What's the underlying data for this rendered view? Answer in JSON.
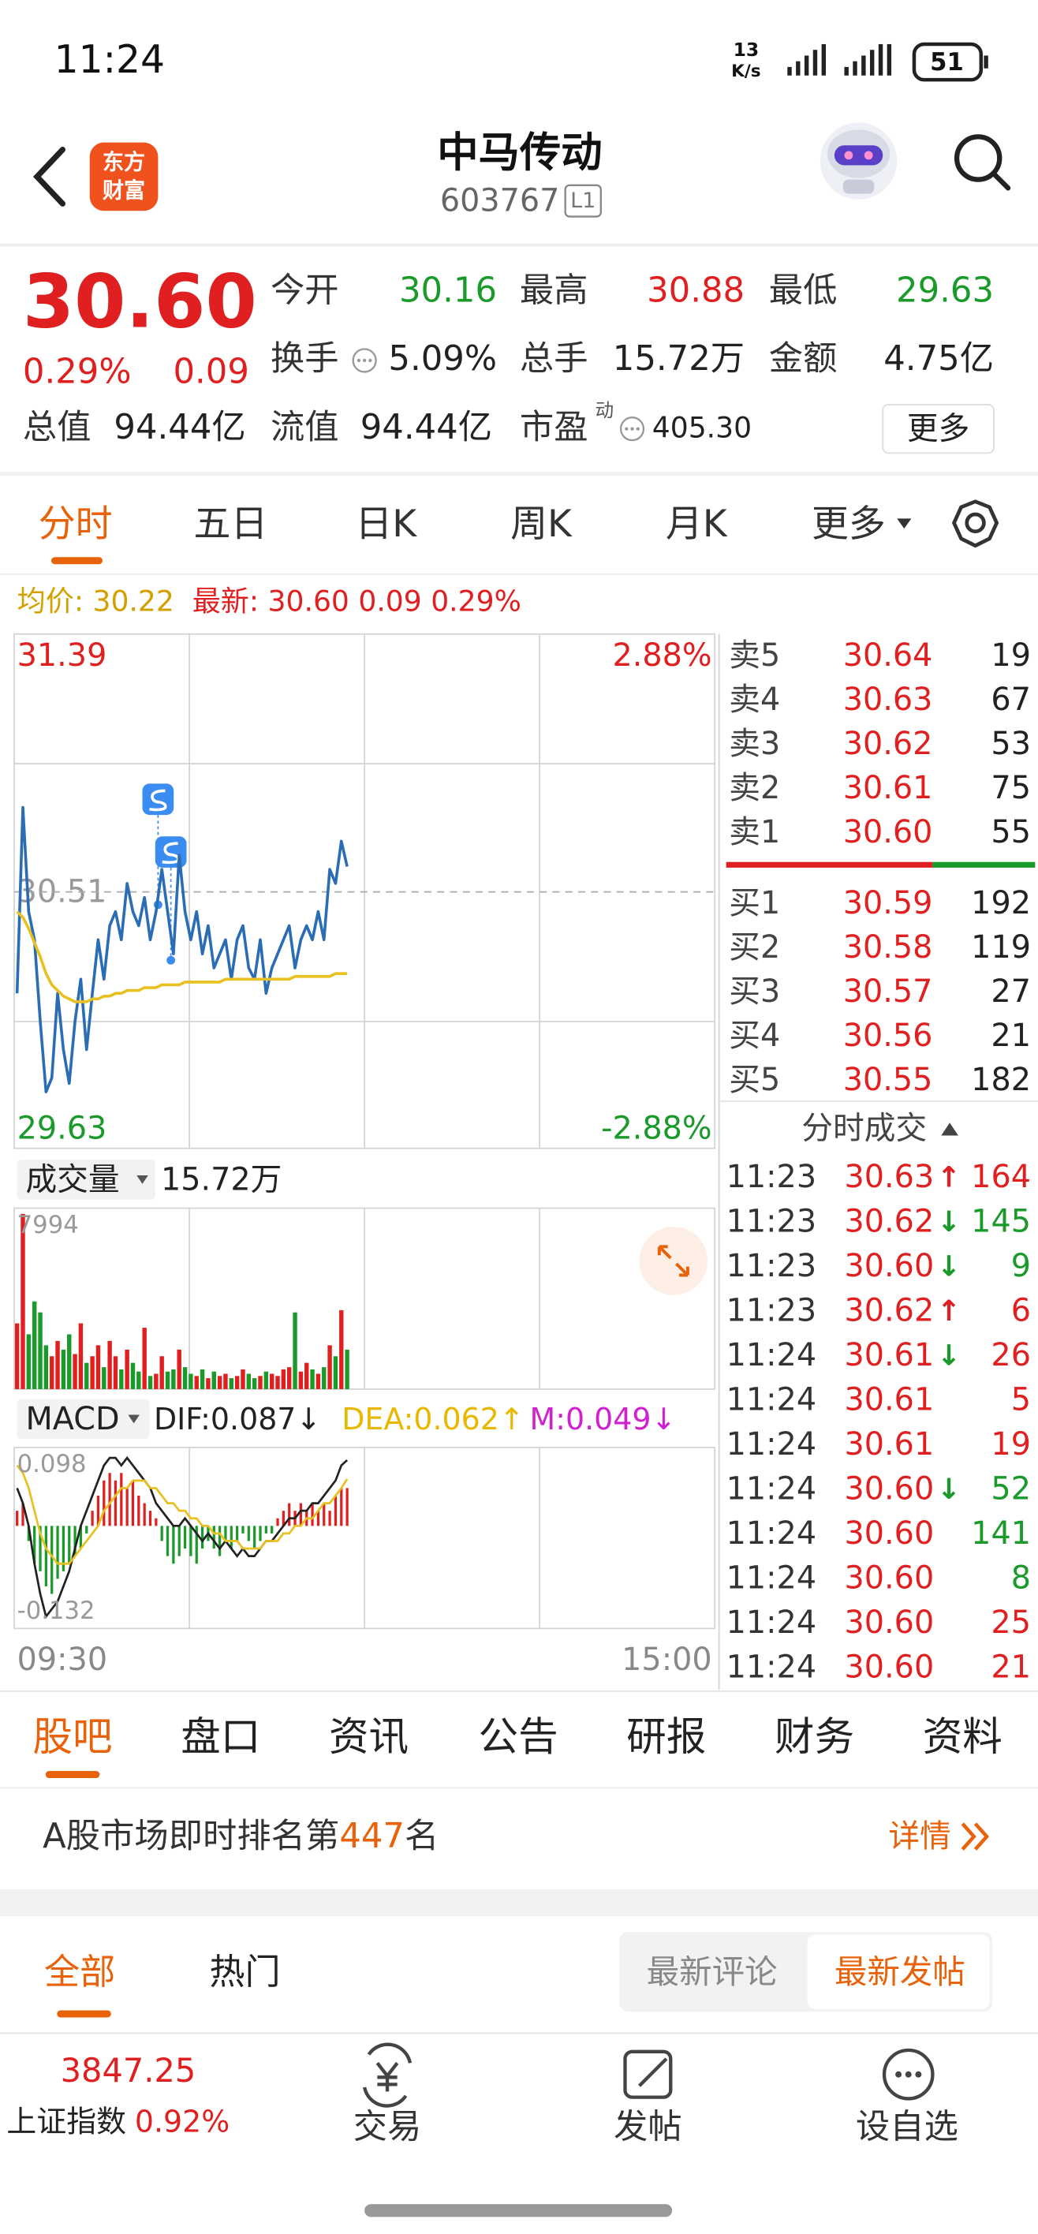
{
  "status_bar": {
    "time": "11:24",
    "speed": "13",
    "speed_unit": "K/s",
    "battery": "51"
  },
  "header": {
    "logo_line1": "东方",
    "logo_line2": "财富",
    "title": "中马传动",
    "code": "603767",
    "badge": "L1"
  },
  "quote": {
    "price": "30.60",
    "change_pct": "0.29%",
    "change": "0.09",
    "more": "更多",
    "fields": [
      {
        "label": "今开",
        "value": "30.16",
        "color": "#1a9a2a"
      },
      {
        "label": "最高",
        "value": "30.88",
        "color": "#e02020"
      },
      {
        "label": "最低",
        "value": "29.63",
        "color": "#1a9a2a"
      },
      {
        "label": "换手",
        "value": "5.09%",
        "color": "#222222"
      },
      {
        "label": "总手",
        "value": "15.72万",
        "color": "#222222"
      },
      {
        "label": "金额",
        "value": "4.75亿",
        "color": "#222222"
      },
      {
        "label": "总值",
        "value": "94.44亿",
        "color": "#222222"
      },
      {
        "label": "流值",
        "value": "94.44亿",
        "color": "#222222"
      },
      {
        "label": "市盈",
        "sup": "动",
        "value": "405.30",
        "color": "#222222"
      }
    ]
  },
  "period_tabs": {
    "items": [
      "分时",
      "五日",
      "日K",
      "周K",
      "月K",
      "更多"
    ],
    "active": 0
  },
  "info_line": {
    "avg": "均价: 30.22",
    "latest": "最新: 30.60 0.09 0.29%"
  },
  "chart_data": [
    {
      "type": "line",
      "ylim": [
        29.63,
        31.39
      ],
      "yticks": [
        29.63,
        30.51,
        31.39
      ],
      "y2lim": [
        -2.88,
        2.88
      ],
      "y2ticks": [
        {
          "value": -2.88,
          "label": "-2.88%"
        },
        {
          "value": 2.88,
          "label": "2.88%"
        }
      ],
      "xlim": [
        "09:30",
        "15:00"
      ],
      "xticks": [
        "09:30",
        "15:00"
      ],
      "x": [
        "09:30",
        "09:32",
        "09:34",
        "09:36",
        "09:38",
        "09:40",
        "09:42",
        "09:44",
        "09:46",
        "09:48",
        "09:50",
        "09:52",
        "09:54",
        "09:56",
        "09:58",
        "10:00",
        "10:02",
        "10:04",
        "10:06",
        "10:08",
        "10:10",
        "10:12",
        "10:14",
        "10:16",
        "10:18",
        "10:20",
        "10:22",
        "10:24",
        "10:26",
        "10:28",
        "10:30",
        "10:32",
        "10:34",
        "10:36",
        "10:38",
        "10:40",
        "10:42",
        "10:44",
        "10:46",
        "10:48",
        "10:50",
        "10:52",
        "10:54",
        "10:56",
        "10:58",
        "11:00",
        "11:02",
        "11:04",
        "11:06",
        "11:08",
        "11:10",
        "11:12",
        "11:14",
        "11:16",
        "11:18",
        "11:20",
        "11:22",
        "11:24"
      ],
      "series": [
        {
          "color": "#2a6db5",
          "values": [
            30.15,
            30.81,
            30.44,
            30.34,
            30.05,
            29.8,
            29.85,
            30.15,
            29.95,
            29.83,
            30.05,
            30.2,
            29.95,
            30.15,
            30.34,
            30.2,
            30.39,
            30.44,
            30.34,
            30.54,
            30.44,
            30.39,
            30.49,
            30.34,
            30.44,
            30.59,
            30.44,
            30.29,
            30.64,
            30.44,
            30.34,
            30.44,
            30.29,
            30.39,
            30.24,
            30.29,
            30.34,
            30.2,
            30.34,
            30.39,
            30.24,
            30.2,
            30.34,
            30.15,
            30.24,
            30.29,
            30.34,
            30.39,
            30.24,
            30.34,
            30.39,
            30.34,
            30.44,
            30.34,
            30.59,
            30.54,
            30.69,
            30.6
          ]
        },
        {
          "color": "#e8c020",
          "values": [
            30.44,
            30.42,
            30.38,
            30.33,
            30.28,
            30.22,
            30.18,
            30.16,
            30.14,
            30.13,
            30.12,
            30.12,
            30.12,
            30.13,
            30.13,
            30.14,
            30.14,
            30.15,
            30.15,
            30.16,
            30.16,
            30.16,
            30.17,
            30.17,
            30.17,
            30.18,
            30.18,
            30.18,
            30.18,
            30.19,
            30.19,
            30.19,
            30.19,
            30.19,
            30.19,
            30.19,
            30.2,
            30.2,
            30.2,
            30.2,
            30.2,
            30.2,
            30.2,
            30.2,
            30.2,
            30.2,
            30.2,
            30.2,
            30.21,
            30.21,
            30.21,
            30.21,
            30.21,
            30.21,
            30.21,
            30.22,
            30.22,
            30.22
          ]
        }
      ]
    },
    {
      "type": "bar",
      "label": "成交量",
      "total": "15.72万",
      "ylim": [
        0,
        7994
      ],
      "yticks": [
        7994
      ],
      "up_color": "#e02020",
      "down_color": "#1a9a2a",
      "values": [
        3000,
        7994,
        2500,
        4000,
        3500,
        2000,
        1500,
        2200,
        1800,
        2500,
        1600,
        3000,
        1200,
        1500,
        2000,
        1000,
        2200,
        1500,
        900,
        1800,
        1200,
        800,
        2800,
        600,
        700,
        1500,
        800,
        900,
        1800,
        1000,
        700,
        600,
        900,
        500,
        800,
        600,
        700,
        500,
        600,
        900,
        700,
        500,
        600,
        800,
        700,
        600,
        900,
        1000,
        3500,
        800,
        1200,
        900,
        700,
        1000,
        2000,
        1500,
        3600,
        1800
      ]
    },
    {
      "type": "macd",
      "label": "MACD",
      "ylim": [
        -0.132,
        0.098
      ],
      "yticks": [
        -0.132,
        0.098
      ],
      "up_color": "#e02020",
      "down_color": "#1a9a2a",
      "legend": [
        {
          "text": "DIF:0.087↓",
          "color": "#222222"
        },
        {
          "text": "DEA:0.062↑",
          "color": "#e8b800"
        },
        {
          "text": "M:0.049↓",
          "color": "#d020d0"
        }
      ],
      "bars": [
        0.02,
        0.03,
        -0.02,
        -0.05,
        -0.06,
        -0.08,
        -0.09,
        -0.07,
        -0.06,
        -0.05,
        -0.04,
        -0.03,
        -0.01,
        0.02,
        0.04,
        0.06,
        0.07,
        0.06,
        0.07,
        0.05,
        0.06,
        0.04,
        0.03,
        0.02,
        0.01,
        -0.02,
        -0.04,
        -0.05,
        -0.04,
        -0.03,
        -0.04,
        -0.05,
        -0.03,
        -0.02,
        -0.03,
        -0.04,
        -0.02,
        -0.03,
        -0.02,
        -0.01,
        -0.02,
        -0.03,
        -0.02,
        -0.01,
        -0.01,
        0.01,
        0.02,
        0.03,
        0.02,
        0.03,
        0.02,
        0.03,
        0.02,
        0.03,
        0.02,
        0.04,
        0.05,
        0.05
      ],
      "series": [
        {
          "color": "#222222",
          "values": [
            0.05,
            0.03,
            0.0,
            -0.05,
            -0.09,
            -0.12,
            -0.11,
            -0.1,
            -0.08,
            -0.06,
            -0.03,
            0.0,
            0.02,
            0.04,
            0.06,
            0.08,
            0.09,
            0.09,
            0.08,
            0.09,
            0.08,
            0.07,
            0.06,
            0.05,
            0.03,
            0.02,
            0.01,
            0.0,
            0.0,
            0.01,
            0.0,
            -0.01,
            -0.02,
            -0.01,
            -0.02,
            -0.03,
            -0.02,
            -0.03,
            -0.04,
            -0.03,
            -0.04,
            -0.04,
            -0.03,
            -0.02,
            -0.02,
            -0.01,
            0.0,
            0.01,
            0.01,
            0.02,
            0.02,
            0.03,
            0.03,
            0.04,
            0.05,
            0.06,
            0.08,
            0.087
          ]
        },
        {
          "color": "#e8c020",
          "values": [
            0.08,
            0.07,
            0.05,
            0.02,
            -0.01,
            -0.03,
            -0.04,
            -0.05,
            -0.05,
            -0.05,
            -0.04,
            -0.03,
            -0.02,
            -0.01,
            0.0,
            0.02,
            0.03,
            0.04,
            0.05,
            0.05,
            0.06,
            0.06,
            0.06,
            0.05,
            0.05,
            0.04,
            0.03,
            0.03,
            0.02,
            0.02,
            0.01,
            0.01,
            0.0,
            0.0,
            -0.01,
            -0.01,
            -0.02,
            -0.02,
            -0.02,
            -0.03,
            -0.03,
            -0.03,
            -0.03,
            -0.02,
            -0.02,
            -0.02,
            -0.01,
            -0.01,
            0.0,
            0.0,
            0.01,
            0.01,
            0.02,
            0.03,
            0.03,
            0.04,
            0.05,
            0.062
          ]
        }
      ]
    }
  ],
  "order_book": {
    "asks": [
      {
        "label": "卖5",
        "price": "30.64",
        "volume": "19"
      },
      {
        "label": "卖4",
        "price": "30.63",
        "volume": "67"
      },
      {
        "label": "卖3",
        "price": "30.62",
        "volume": "53"
      },
      {
        "label": "卖2",
        "price": "30.61",
        "volume": "75"
      },
      {
        "label": "卖1",
        "price": "30.60",
        "volume": "55"
      }
    ],
    "bids": [
      {
        "label": "买1",
        "price": "30.59",
        "volume": "192"
      },
      {
        "label": "买2",
        "price": "30.58",
        "volume": "119"
      },
      {
        "label": "买3",
        "price": "30.57",
        "volume": "27"
      },
      {
        "label": "买4",
        "price": "30.56",
        "volume": "21"
      },
      {
        "label": "买5",
        "price": "30.55",
        "volume": "182"
      }
    ]
  },
  "trades": {
    "title": "分时成交",
    "rows": [
      {
        "time": "11:23",
        "price": "30.63",
        "arrow": "↑",
        "arrow_color": "#e02020",
        "volume": "164",
        "volume_color": "#e02020"
      },
      {
        "time": "11:23",
        "price": "30.62",
        "arrow": "↓",
        "arrow_color": "#1a9a2a",
        "volume": "145",
        "volume_color": "#1a9a2a"
      },
      {
        "time": "11:23",
        "price": "30.60",
        "arrow": "↓",
        "arrow_color": "#1a9a2a",
        "volume": "9",
        "volume_color": "#1a9a2a"
      },
      {
        "time": "11:23",
        "price": "30.62",
        "arrow": "↑",
        "arrow_color": "#e02020",
        "volume": "6",
        "volume_color": "#e02020"
      },
      {
        "time": "11:24",
        "price": "30.61",
        "arrow": "↓",
        "arrow_color": "#1a9a2a",
        "volume": "26",
        "volume_color": "#e02020"
      },
      {
        "time": "11:24",
        "price": "30.61",
        "volume": "5",
        "volume_color": "#e02020"
      },
      {
        "time": "11:24",
        "price": "30.61",
        "volume": "19",
        "volume_color": "#e02020"
      },
      {
        "time": "11:24",
        "price": "30.60",
        "arrow": "↓",
        "arrow_color": "#1a9a2a",
        "volume": "52",
        "volume_color": "#1a9a2a"
      },
      {
        "time": "11:24",
        "price": "30.60",
        "volume": "141",
        "volume_color": "#1a9a2a"
      },
      {
        "time": "11:24",
        "price": "30.60",
        "volume": "8",
        "volume_color": "#1a9a2a"
      },
      {
        "time": "11:24",
        "price": "30.60",
        "volume": "25",
        "volume_color": "#e02020"
      },
      {
        "time": "11:24",
        "price": "30.60",
        "volume": "21",
        "volume_color": "#e02020"
      }
    ]
  },
  "section_tabs": {
    "items": [
      "股吧",
      "盘口",
      "资讯",
      "公告",
      "研报",
      "财务",
      "资料"
    ],
    "active": 0
  },
  "ranking": {
    "prefix": "A股市场即时排名第",
    "rank": "447",
    "suffix": "名",
    "detail": "详情"
  },
  "post_tabs": {
    "items": [
      "全部",
      "热门"
    ],
    "active": 0,
    "sort": [
      "最新评论",
      "最新发帖"
    ],
    "sort_active": 1
  },
  "bottom_nav": {
    "index_value": "3847.25",
    "index_name": "上证指数",
    "index_change": "0.92%",
    "items": [
      "交易",
      "发帖",
      "设自选"
    ]
  }
}
